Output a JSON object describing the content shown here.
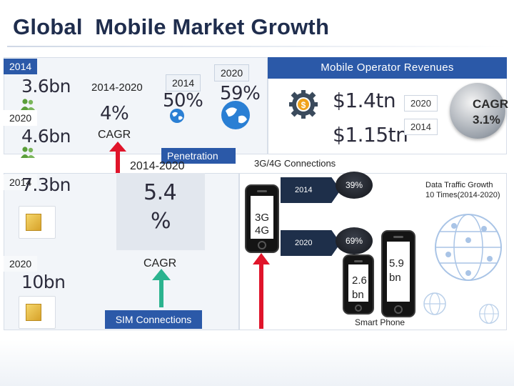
{
  "title": "Global  Mobile Market Growth",
  "users": {
    "year_2014": "2014",
    "value_2014": "3.6bn",
    "year_2020": "2020",
    "value_2020": "4.6bn",
    "cagr_period": "2014-2020",
    "cagr_value": "4%",
    "cagr_label": "CAGR"
  },
  "penetration": {
    "year_2014": "2014",
    "value_2014": "50%",
    "year_2020": "2020",
    "value_2020": "59%",
    "label": "Penetration"
  },
  "revenues": {
    "header": "Mobile Operator Revenues",
    "value_2020": "$1.4tn",
    "year_2020": "2020",
    "value_2014": "$1.15tn",
    "year_2014": "2014",
    "cagr_line1": "CAGR",
    "cagr_line2": "3.1%"
  },
  "sim": {
    "year_2014": "2014",
    "value_2014": "7.3bn",
    "year_2020": "2020",
    "value_2020": "10bn",
    "cagr_period": "2014-2020",
    "cagr_value_line1": "5.4",
    "cagr_value_line2": "%",
    "cagr_label": "CAGR",
    "label": "SIM Connections"
  },
  "connections": {
    "header": "3G/4G Connections",
    "phone_label_line1": "3G",
    "phone_label_line2": "4G",
    "year_2014": "2014",
    "pct_2014": "39%",
    "year_2020": "2020",
    "pct_2020": "69%"
  },
  "traffic": {
    "line1": "Data Traffic Growth",
    "line2": "10 Times(2014-2020)"
  },
  "smartphone": {
    "value_2014_line1": "2.6",
    "value_2014_line2": "bn",
    "value_2020_line1": "5.9",
    "value_2020_line2": "bn",
    "label": "Smart Phone"
  },
  "colors": {
    "accent_blue": "#2b59a8",
    "arrow_red": "#e0142a",
    "arrow_teal": "#2bb38f",
    "panel_bg": "#f2f5f9"
  }
}
